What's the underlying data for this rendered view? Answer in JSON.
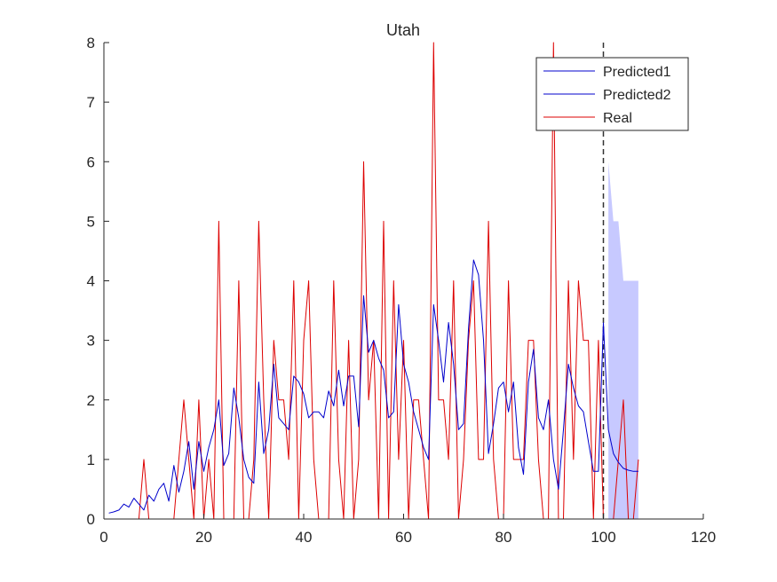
{
  "chart_data": {
    "type": "line",
    "title": "Utah",
    "xlabel": "",
    "ylabel": "",
    "xlim": [
      0,
      120
    ],
    "ylim": [
      0,
      8
    ],
    "xticks": [
      "0",
      "20",
      "40",
      "60",
      "80",
      "100",
      "120"
    ],
    "yticks": [
      "0",
      "1",
      "2",
      "3",
      "4",
      "5",
      "6",
      "7",
      "8"
    ],
    "vline_x": 100,
    "legend_position": "top-right",
    "legend": [
      "Predicted1",
      "Predicted2",
      "Real"
    ],
    "series": [
      {
        "name": "Predicted1",
        "color": "#0000cc",
        "x": [
          1,
          2,
          3,
          4,
          5,
          6,
          7,
          8,
          9,
          10,
          11,
          12,
          13,
          14,
          15,
          16,
          17,
          18,
          19,
          20,
          21,
          22,
          23,
          24,
          25,
          26,
          27,
          28,
          29,
          30,
          31,
          32,
          33,
          34,
          35,
          36,
          37,
          38,
          39,
          40,
          41,
          42,
          43,
          44,
          45,
          46,
          47,
          48,
          49,
          50,
          51,
          52,
          53,
          54,
          55,
          56,
          57,
          58,
          59,
          60,
          61,
          62,
          63,
          64,
          65,
          66,
          67,
          68,
          69,
          70,
          71,
          72,
          73,
          74,
          75,
          76,
          77,
          78,
          79,
          80,
          81,
          82,
          83,
          84,
          85,
          86,
          87,
          88,
          89,
          90,
          91,
          92,
          93,
          94,
          95,
          96,
          97,
          98,
          99,
          100
        ],
        "y": [
          0.1,
          0.12,
          0.15,
          0.25,
          0.2,
          0.35,
          0.25,
          0.15,
          0.4,
          0.3,
          0.5,
          0.6,
          0.3,
          0.9,
          0.45,
          0.8,
          1.3,
          0.5,
          1.3,
          0.8,
          1.2,
          1.5,
          2.0,
          0.9,
          1.1,
          2.2,
          1.7,
          1.0,
          0.7,
          0.6,
          2.3,
          1.1,
          1.5,
          2.6,
          1.7,
          1.6,
          1.5,
          2.4,
          2.3,
          2.1,
          1.7,
          1.8,
          1.8,
          1.7,
          2.15,
          1.9,
          2.5,
          1.9,
          2.4,
          2.4,
          1.55,
          3.75,
          2.8,
          3.0,
          2.7,
          2.5,
          1.7,
          1.8,
          3.6,
          2.6,
          2.3,
          1.8,
          1.5,
          1.2,
          1.0,
          3.6,
          3.0,
          2.3,
          3.3,
          2.6,
          1.5,
          1.6,
          3.2,
          4.35,
          4.1,
          3.0,
          1.1,
          1.6,
          2.2,
          2.3,
          1.8,
          2.3,
          1.2,
          0.75,
          2.3,
          2.85,
          1.7,
          1.5,
          2.0,
          1.0,
          0.5,
          1.5,
          2.6,
          2.2,
          1.9,
          1.8,
          1.3,
          0.8,
          0.8,
          3.3
        ]
      },
      {
        "name": "Predicted2",
        "color": "#0000cc",
        "x": [
          100,
          101,
          102,
          103,
          104,
          105,
          106,
          107
        ],
        "y": [
          3.3,
          1.5,
          1.1,
          0.95,
          0.85,
          0.82,
          0.8,
          0.8
        ]
      },
      {
        "name": "Real",
        "color": "#dd0000",
        "x": [
          1,
          2,
          3,
          4,
          5,
          6,
          7,
          8,
          9,
          10,
          11,
          12,
          13,
          14,
          15,
          16,
          17,
          18,
          19,
          20,
          21,
          22,
          23,
          24,
          25,
          26,
          27,
          28,
          29,
          30,
          31,
          32,
          33,
          34,
          35,
          36,
          37,
          38,
          39,
          40,
          41,
          42,
          43,
          44,
          45,
          46,
          47,
          48,
          49,
          50,
          51,
          52,
          53,
          54,
          55,
          56,
          57,
          58,
          59,
          60,
          61,
          62,
          63,
          64,
          65,
          66,
          67,
          68,
          69,
          70,
          71,
          72,
          73,
          74,
          75,
          76,
          77,
          78,
          79,
          80,
          81,
          82,
          83,
          84,
          85,
          86,
          87,
          88,
          89,
          90,
          91,
          92,
          93,
          94,
          95,
          96,
          97,
          98,
          99,
          100,
          101,
          102,
          103,
          104,
          105,
          106,
          107
        ],
        "y": [
          0,
          0,
          0,
          0,
          0,
          0,
          0,
          1,
          0,
          0,
          0,
          0,
          0,
          0,
          1,
          2,
          1,
          0,
          2,
          0,
          1,
          0,
          5,
          0,
          0,
          0,
          4,
          0,
          0,
          1,
          5,
          2,
          0,
          3,
          2,
          2,
          1,
          4,
          0,
          3,
          4,
          1,
          0,
          0,
          0,
          4,
          1,
          0,
          3,
          0,
          1,
          6,
          2,
          3,
          0,
          5,
          0,
          4,
          1,
          3,
          0,
          2,
          2,
          1,
          0,
          8,
          2,
          2,
          1,
          4,
          0,
          1,
          3,
          4,
          1,
          1,
          5,
          1,
          0,
          0,
          4,
          1,
          1,
          1,
          3,
          3,
          1,
          0,
          0,
          8,
          0,
          0,
          4,
          1,
          4,
          3,
          3,
          0,
          3,
          0,
          0,
          0,
          1,
          2,
          0,
          0,
          1
        ]
      }
    ],
    "band": {
      "name": "",
      "color": "#c7c9ff",
      "x": [
        101,
        102,
        103,
        104,
        105,
        106,
        107
      ],
      "upper": [
        6,
        5,
        5,
        4,
        4,
        4,
        4
      ],
      "lower": [
        0,
        0,
        0,
        0,
        0,
        0,
        0
      ]
    }
  }
}
